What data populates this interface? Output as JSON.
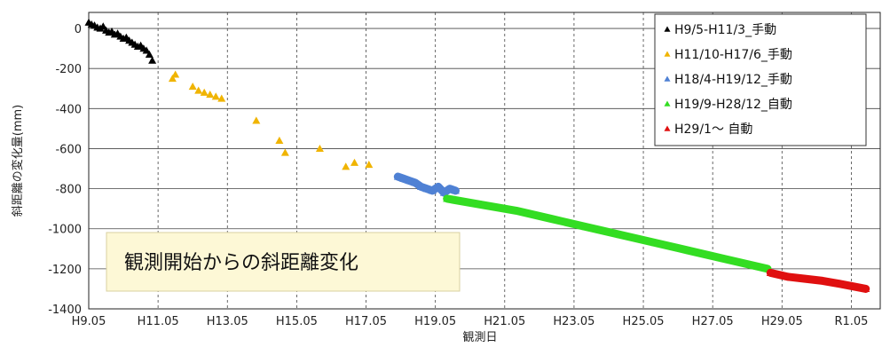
{
  "chart_data": {
    "type": "scatter",
    "xlabel": "観測日",
    "ylabel": "斜距離の変化量(mm)",
    "x_ticks": [
      "H9.05",
      "H11.05",
      "H13.05",
      "H15.05",
      "H17.05",
      "H19.05",
      "H21.05",
      "H23.05",
      "H25.05",
      "H27.05",
      "H29.05",
      "R1.05"
    ],
    "y_ticks": [
      0,
      -200,
      -400,
      -600,
      -800,
      -1000,
      -1200,
      -1400
    ],
    "xlim": [
      "H9.05",
      "R1.05 + 10 months"
    ],
    "ylim": [
      -1400,
      80
    ],
    "grid_x": "dashed",
    "grid_y": "solid",
    "legend_position": "top-right",
    "annotation": "観測開始からの斜距離変化",
    "series": [
      {
        "name": "H9/5-H11/3_手動",
        "color": "#000000",
        "marker": "triangle",
        "x": [
          "H9.05",
          "H9.06",
          "H9.07",
          "H9.08",
          "H9.09",
          "H9.10",
          "H9.11",
          "H9.12",
          "H10.01",
          "H10.02",
          "H10.03",
          "H10.04",
          "H10.05",
          "H10.06",
          "H10.07",
          "H10.08",
          "H10.09",
          "H10.10",
          "H10.11",
          "H10.12",
          "H11.01",
          "H11.02",
          "H11.03"
        ],
        "y": [
          30,
          20,
          15,
          5,
          0,
          10,
          -10,
          -20,
          -15,
          -30,
          -25,
          -40,
          -50,
          -45,
          -60,
          -70,
          -80,
          -90,
          -85,
          -100,
          -110,
          -130,
          -160
        ]
      },
      {
        "name": "H11/10-H17/6_手動",
        "color": "#f0b400",
        "marker": "triangle",
        "x": [
          "H11.10",
          "H11.11",
          "H12.05",
          "H12.07",
          "H12.09",
          "H12.11",
          "H13.01",
          "H13.03",
          "H14.03",
          "H14.11",
          "H15.01",
          "H16.01",
          "H16.10",
          "H17.01",
          "H17.06"
        ],
        "y": [
          -250,
          -230,
          -290,
          -310,
          -320,
          -330,
          -340,
          -350,
          -460,
          -560,
          -620,
          -600,
          -690,
          -670,
          -680
        ]
      },
      {
        "name": "H18/4-H19/12_手動",
        "color": "#4f81d4",
        "marker": "triangle",
        "x": [
          "H18.04",
          "H18.06",
          "H18.08",
          "H18.10",
          "H18.12",
          "H19.02",
          "H19.04",
          "H19.06",
          "H19.08",
          "H19.10",
          "H19.12"
        ],
        "y": [
          -740,
          -750,
          -760,
          -770,
          -790,
          -800,
          -810,
          -790,
          -820,
          -800,
          -810
        ]
      },
      {
        "name": "H19/9-H28/12_自動",
        "color": "#33dd22",
        "marker": "triangle",
        "x": [
          "H19.09",
          "H20.09",
          "H21.09",
          "H22.09",
          "H23.09",
          "H24.09",
          "H25.09",
          "H26.09",
          "H27.09",
          "H28.12"
        ],
        "y": [
          -850,
          -880,
          -910,
          -950,
          -990,
          -1030,
          -1070,
          -1110,
          -1150,
          -1200
        ]
      },
      {
        "name": "H29/1～ 自動",
        "color": "#e01010",
        "marker": "triangle",
        "x": [
          "H29.01",
          "H29.07",
          "H30.01",
          "H30.07",
          "H31.01",
          "R1.10"
        ],
        "y": [
          -1220,
          -1240,
          -1250,
          -1260,
          -1275,
          -1300
        ]
      }
    ]
  }
}
